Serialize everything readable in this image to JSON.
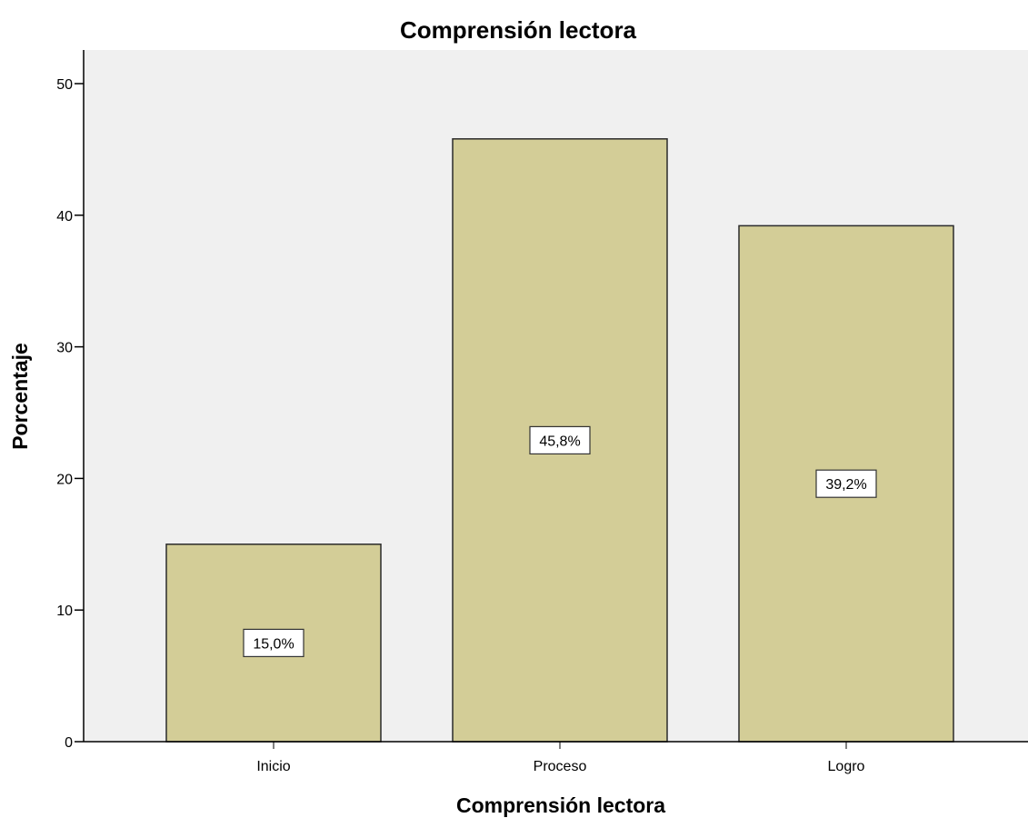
{
  "chart_data": {
    "type": "bar",
    "title": "Comprensión lectora",
    "xlabel": "Comprensión lectora",
    "ylabel": "Porcentaje",
    "categories": [
      "Inicio",
      "Proceso",
      "Logro"
    ],
    "values": [
      15.0,
      45.8,
      39.2
    ],
    "data_labels": [
      "15,0%",
      "45,8%",
      "39,2%"
    ],
    "yticks": [
      0,
      10,
      20,
      30,
      40,
      50
    ],
    "ylim": [
      0,
      52.5
    ],
    "grid": false,
    "legend": "none",
    "colors": {
      "bar_fill": "#d3cd97",
      "bar_stroke": "#2b2b2b",
      "plot_background": "#f0f0f0",
      "axis": "#000000"
    }
  }
}
